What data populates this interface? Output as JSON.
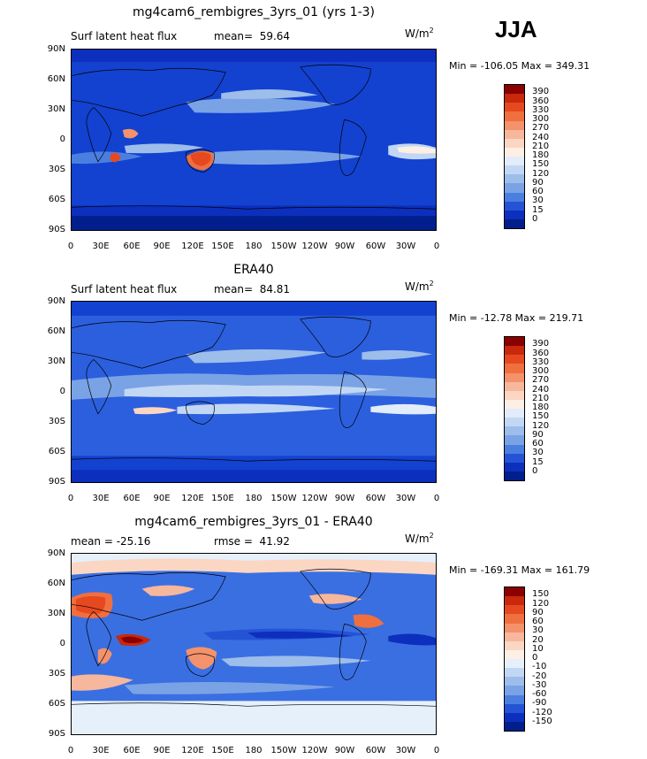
{
  "season": "JJA",
  "lat_ticks": [
    "90N",
    "60N",
    "30N",
    "0",
    "30S",
    "60S",
    "90S"
  ],
  "lon_ticks": [
    "0",
    "30E",
    "60E",
    "90E",
    "120E",
    "150E",
    "180",
    "150W",
    "120W",
    "90W",
    "60W",
    "30W",
    "0"
  ],
  "units": "W/m",
  "units_sup": "2",
  "panels": [
    {
      "title": "mg4cam6_rembigres_3yrs_01 (yrs 1-3)",
      "left_label": "Surf latent heat flux",
      "mid_label": "mean=  59.64",
      "minmax": "Min = -106.05 Max = 349.31",
      "levels": [
        "390",
        "360",
        "330",
        "300",
        "270",
        "240",
        "210",
        "180",
        "150",
        "120",
        "90",
        "60",
        "30",
        "15",
        "0"
      ],
      "colors": [
        "#8b0000",
        "#c8290c",
        "#e6491f",
        "#f06f3e",
        "#f4926b",
        "#f7b79c",
        "#fbd6c3",
        "#fdefe3",
        "#e2ecfa",
        "#c2d7f4",
        "#9dbdeb",
        "#7aa3e6",
        "#4a7fe0",
        "#2553d6",
        "#0d2fbd",
        "#001f8c"
      ],
      "bg": "#1342d0"
    },
    {
      "title": "ERA40",
      "left_label": "Surf latent heat flux",
      "mid_label": "mean=  84.81",
      "minmax": "Min = -12.78 Max = 219.71",
      "levels": [
        "390",
        "360",
        "330",
        "300",
        "270",
        "240",
        "210",
        "180",
        "150",
        "120",
        "90",
        "60",
        "30",
        "15",
        "0"
      ],
      "colors": [
        "#8b0000",
        "#c8290c",
        "#e6491f",
        "#f06f3e",
        "#f4926b",
        "#f7b79c",
        "#fbd6c3",
        "#fdefe3",
        "#e2ecfa",
        "#c2d7f4",
        "#9dbdeb",
        "#7aa3e6",
        "#4a7fe0",
        "#2553d6",
        "#0d2fbd",
        "#001f8c"
      ],
      "bg": "#2b5fde"
    },
    {
      "title": "mg4cam6_rembigres_3yrs_01 - ERA40",
      "left_label": "mean = -25.16",
      "mid_label": "rmse =  41.92",
      "minmax": "Min = -169.31 Max = 161.79",
      "levels": [
        "150",
        "120",
        "90",
        "60",
        "30",
        "20",
        "10",
        "0",
        "-10",
        "-20",
        "-30",
        "-60",
        "-90",
        "-120",
        "-150"
      ],
      "colors": [
        "#8b0000",
        "#c8290c",
        "#e6491f",
        "#f06f3e",
        "#f4926b",
        "#f7b79c",
        "#fbd6c3",
        "#fdefe3",
        "#e6f0fb",
        "#c2d7f4",
        "#9dbdeb",
        "#7aa3e6",
        "#4a7fe0",
        "#2553d6",
        "#0d2fbd",
        "#001f8c"
      ],
      "bg": "#3a6fe2"
    }
  ]
}
